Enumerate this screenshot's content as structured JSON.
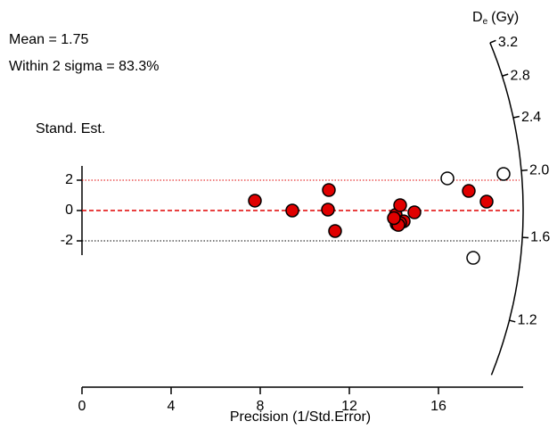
{
  "chart_data": {
    "type": "radial",
    "annotations": [
      {
        "label": "Mean = 1.75",
        "value": 1.75
      },
      {
        "label": "Within 2 sigma = 83.3%",
        "value": 83.3
      }
    ],
    "y_label": "Stand. Est.",
    "x_label": "Precision (1/Std.Error)",
    "z_label": {
      "main": "D",
      "sub": "e",
      "unit": "(Gy)"
    },
    "xlim": [
      0,
      19.8
    ],
    "xticks": [
      0,
      4,
      8,
      12,
      16
    ],
    "ylim": [
      -2.94,
      2.94
    ],
    "yticks": [
      -2,
      0,
      2
    ],
    "zlim": [
      0.97,
      3.2
    ],
    "zticks": [
      1.2,
      1.6,
      {
        "value": 2,
        "label": "2.0"
      },
      2.4,
      2.8,
      3.2
    ],
    "series": [
      {
        "color": "#e00000",
        "x": [
          7.76,
          9.44,
          11.08,
          11.04,
          11.36,
          14.08,
          14.28,
          14.12,
          14.44,
          14.28,
          14.2,
          14.0,
          14.92,
          17.36,
          18.16
        ],
        "values": [
          0.65,
          0.0,
          1.35,
          0.06,
          -1.35,
          -0.29,
          0.35,
          -0.88,
          -0.71,
          -0.82,
          -0.95,
          -0.5,
          -0.12,
          1.29,
          0.59
        ]
      },
      {
        "color": "#ffffff",
        "x": [
          16.4,
          18.92,
          17.56
        ],
        "values": [
          2.12,
          2.41,
          -3.12
        ]
      }
    ]
  }
}
